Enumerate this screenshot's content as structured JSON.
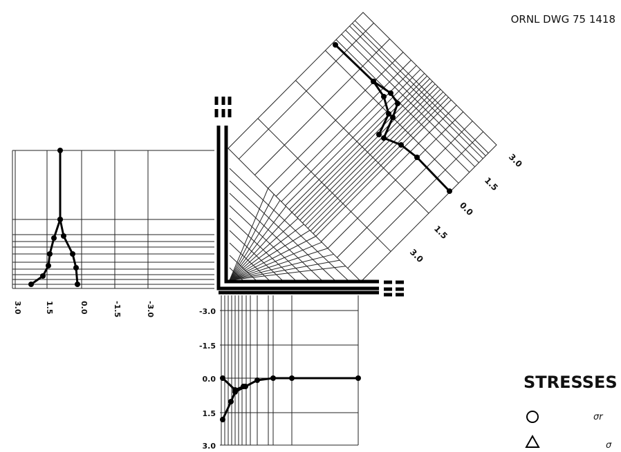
{
  "header": {
    "drawing_number": "ORNL  DWG 75  1418"
  },
  "left_scale": {
    "labels": [
      "3.0",
      "1.5",
      "0.0",
      "-1.5",
      "-3.0"
    ]
  },
  "bottom_scale": {
    "labels": [
      "-3.0",
      "-1.5",
      "0.0",
      "1.5",
      "3.0"
    ]
  },
  "diagonal_scale": {
    "labels": [
      "3.0",
      "1.5",
      "0.0",
      "1.5",
      "3.0"
    ]
  },
  "legend": {
    "title": "STRESSES",
    "items": [
      {
        "label": "σr"
      },
      {
        "label": "σ"
      }
    ]
  }
}
